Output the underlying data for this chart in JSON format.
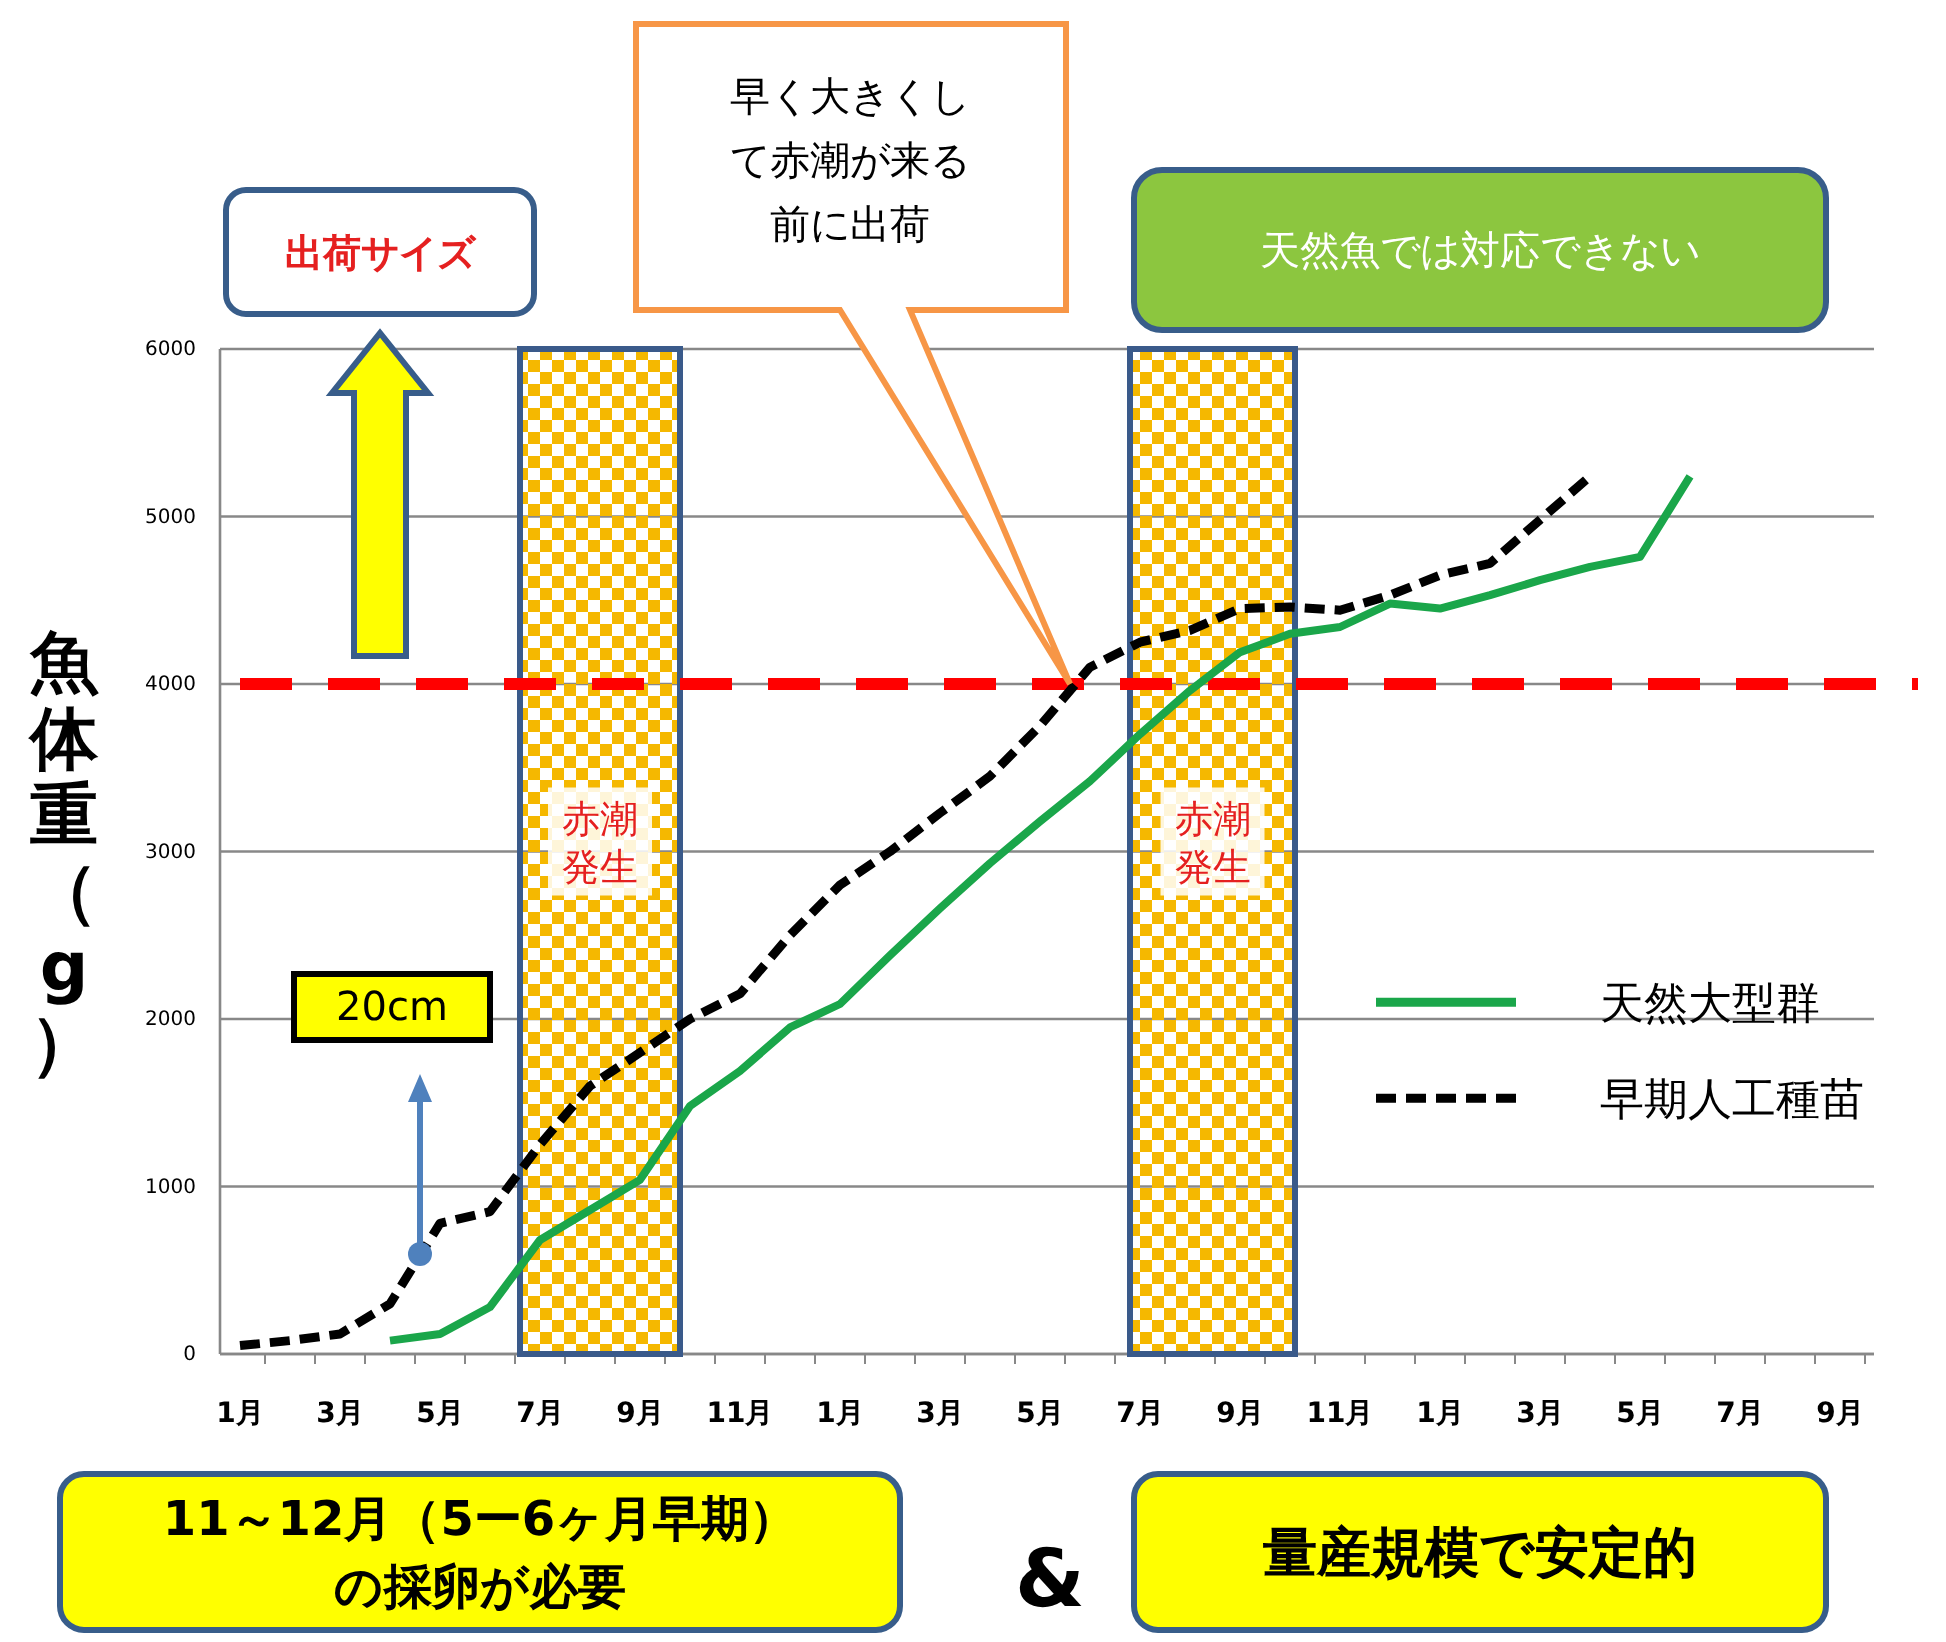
{
  "chart_data": {
    "type": "line",
    "ylabel": "魚体重（g）",
    "categories": [
      "1月",
      null,
      "3月",
      null,
      "5月",
      null,
      "7月",
      null,
      "9月",
      null,
      "11月",
      null,
      "1月",
      null,
      "3月",
      null,
      "5月",
      null,
      "7月",
      null,
      "9月",
      null,
      "11月",
      null,
      "1月",
      null,
      "3月",
      null,
      "5月",
      null,
      "7月",
      null,
      "9月"
    ],
    "ylim": [
      0,
      6000
    ],
    "yticks": [
      0,
      1000,
      2000,
      3000,
      4000,
      5000,
      6000
    ],
    "grid": "y",
    "legend": "right",
    "series": [
      {
        "name": "天然大型群",
        "color": "#1aa64a",
        "line_style": "solid",
        "values": [
          null,
          null,
          null,
          80,
          120,
          280,
          680,
          860,
          1040,
          1480,
          1690,
          1950,
          2090,
          2380,
          2660,
          2930,
          3180,
          3420,
          3700,
          3960,
          4190,
          4300,
          4340,
          4480,
          4450,
          4530,
          4620,
          4700,
          4760,
          5240,
          null,
          null,
          null
        ]
      },
      {
        "name": "早期人工種苗",
        "color": "#000000",
        "line_style": "dashed",
        "values": [
          50,
          80,
          120,
          300,
          780,
          850,
          1250,
          1600,
          1800,
          2000,
          2150,
          2500,
          2800,
          3000,
          3230,
          3450,
          3750,
          4100,
          4250,
          4320,
          4450,
          4460,
          4440,
          4530,
          4650,
          4720,
          4980,
          5240,
          null,
          null,
          null,
          null,
          null
        ]
      }
    ],
    "ref_lines": [
      {
        "axis": "y",
        "value": 4000,
        "color": "#ff0000",
        "line_style": "dashed"
      }
    ],
    "annotations": [
      "出荷サイズ",
      "早く大きくして赤潮が来る前に出荷",
      "天然魚では対応できない",
      "20cm",
      "11～12月（5ー6ヶ月早期）の採卵が必要",
      "&",
      "量産規模で安定的",
      "赤潮発生",
      "赤潮発生"
    ]
  }
}
